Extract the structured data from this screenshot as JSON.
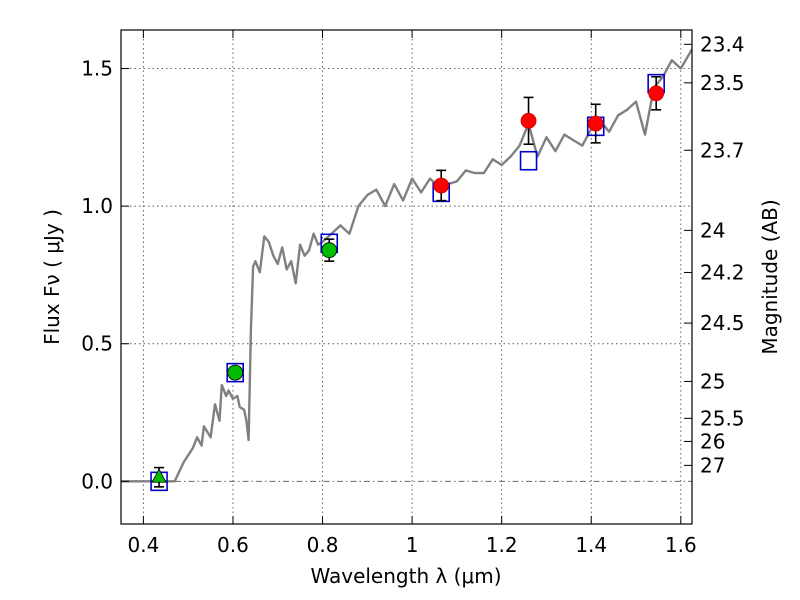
{
  "chart_data": {
    "type": "scatter",
    "title": "",
    "xlabel": "Wavelength  λ (μm)",
    "ylabel": "Flux  Fν  ( μJy )",
    "ylabel_right": "Magnitude (AB)",
    "xlim": [
      0.35,
      1.625
    ],
    "ylim": [
      -0.155,
      1.64
    ],
    "grid": true,
    "x_ticks": [
      {
        "value": 0.4,
        "label": "0.4"
      },
      {
        "value": 0.6,
        "label": "0.6"
      },
      {
        "value": 0.8,
        "label": "0.8"
      },
      {
        "value": 1.0,
        "label": "1"
      },
      {
        "value": 1.2,
        "label": "1.2"
      },
      {
        "value": 1.4,
        "label": "1.4"
      },
      {
        "value": 1.6,
        "label": "1.6"
      }
    ],
    "y_ticks": [
      {
        "value": 0.0,
        "label": "0.0"
      },
      {
        "value": 0.5,
        "label": "0.5"
      },
      {
        "value": 1.0,
        "label": "1.0"
      },
      {
        "value": 1.5,
        "label": "1.5"
      }
    ],
    "right_ticks": [
      {
        "label": "23.4",
        "flux": 1.588
      },
      {
        "label": "23.5",
        "flux": 1.448
      },
      {
        "label": "23.7",
        "flux": 1.203
      },
      {
        "label": "24",
        "flux": 0.912
      },
      {
        "label": "24.2",
        "flux": 0.759
      },
      {
        "label": "24.5",
        "flux": 0.575
      },
      {
        "label": "25",
        "flux": 0.363
      },
      {
        "label": "25.5",
        "flux": 0.229
      },
      {
        "label": "26",
        "flux": 0.145
      },
      {
        "label": "27",
        "flux": 0.058
      }
    ],
    "model_sed": {
      "color": "#808080",
      "x": [
        0.35,
        0.47,
        0.49,
        0.51,
        0.52,
        0.53,
        0.535,
        0.55,
        0.56,
        0.57,
        0.575,
        0.585,
        0.59,
        0.6,
        0.61,
        0.615,
        0.625,
        0.63,
        0.635,
        0.64,
        0.645,
        0.65,
        0.66,
        0.67,
        0.68,
        0.69,
        0.7,
        0.71,
        0.72,
        0.73,
        0.74,
        0.75,
        0.76,
        0.77,
        0.78,
        0.79,
        0.8,
        0.82,
        0.84,
        0.86,
        0.88,
        0.9,
        0.92,
        0.94,
        0.96,
        0.98,
        1.0,
        1.02,
        1.04,
        1.06,
        1.08,
        1.1,
        1.12,
        1.14,
        1.16,
        1.18,
        1.2,
        1.22,
        1.24,
        1.26,
        1.28,
        1.3,
        1.32,
        1.34,
        1.36,
        1.38,
        1.4,
        1.42,
        1.44,
        1.46,
        1.48,
        1.5,
        1.52,
        1.54,
        1.56,
        1.58,
        1.6,
        1.625
      ],
      "y": [
        0.0,
        0.0,
        0.07,
        0.12,
        0.16,
        0.13,
        0.2,
        0.16,
        0.28,
        0.22,
        0.35,
        0.31,
        0.33,
        0.3,
        0.31,
        0.27,
        0.26,
        0.22,
        0.15,
        0.55,
        0.78,
        0.8,
        0.76,
        0.89,
        0.87,
        0.82,
        0.79,
        0.85,
        0.77,
        0.8,
        0.72,
        0.86,
        0.82,
        0.84,
        0.9,
        0.86,
        0.87,
        0.9,
        0.93,
        0.9,
        1.0,
        1.04,
        1.06,
        1.0,
        1.08,
        1.02,
        1.1,
        1.05,
        1.1,
        1.07,
        1.08,
        1.09,
        1.13,
        1.12,
        1.12,
        1.17,
        1.15,
        1.18,
        1.22,
        1.3,
        1.18,
        1.25,
        1.2,
        1.26,
        1.24,
        1.22,
        1.28,
        1.31,
        1.27,
        1.33,
        1.35,
        1.38,
        1.26,
        1.43,
        1.47,
        1.53,
        1.5,
        1.57
      ]
    },
    "model_photometry": {
      "marker": "open-square",
      "color": "#0000cc",
      "points": [
        {
          "x": 0.435,
          "y": 0.0
        },
        {
          "x": 0.605,
          "y": 0.395
        },
        {
          "x": 0.815,
          "y": 0.865
        },
        {
          "x": 1.065,
          "y": 1.05
        },
        {
          "x": 1.26,
          "y": 1.165
        },
        {
          "x": 1.41,
          "y": 1.29
        },
        {
          "x": 1.545,
          "y": 1.445
        }
      ]
    },
    "observed_green": {
      "color": "#00bb00",
      "points": [
        {
          "x": 0.435,
          "y": 0.015,
          "yerr": 0.035,
          "marker": "triangle"
        },
        {
          "x": 0.605,
          "y": 0.395,
          "yerr": 0.02,
          "marker": "circle"
        },
        {
          "x": 0.815,
          "y": 0.84,
          "yerr": 0.04,
          "marker": "circle"
        }
      ]
    },
    "observed_red": {
      "color": "#ff0000",
      "points": [
        {
          "x": 1.065,
          "y": 1.075,
          "yerr": 0.055
        },
        {
          "x": 1.26,
          "y": 1.31,
          "yerr": 0.085
        },
        {
          "x": 1.41,
          "y": 1.3,
          "yerr": 0.07
        },
        {
          "x": 1.545,
          "y": 1.41,
          "yerr": 0.06
        }
      ]
    }
  }
}
